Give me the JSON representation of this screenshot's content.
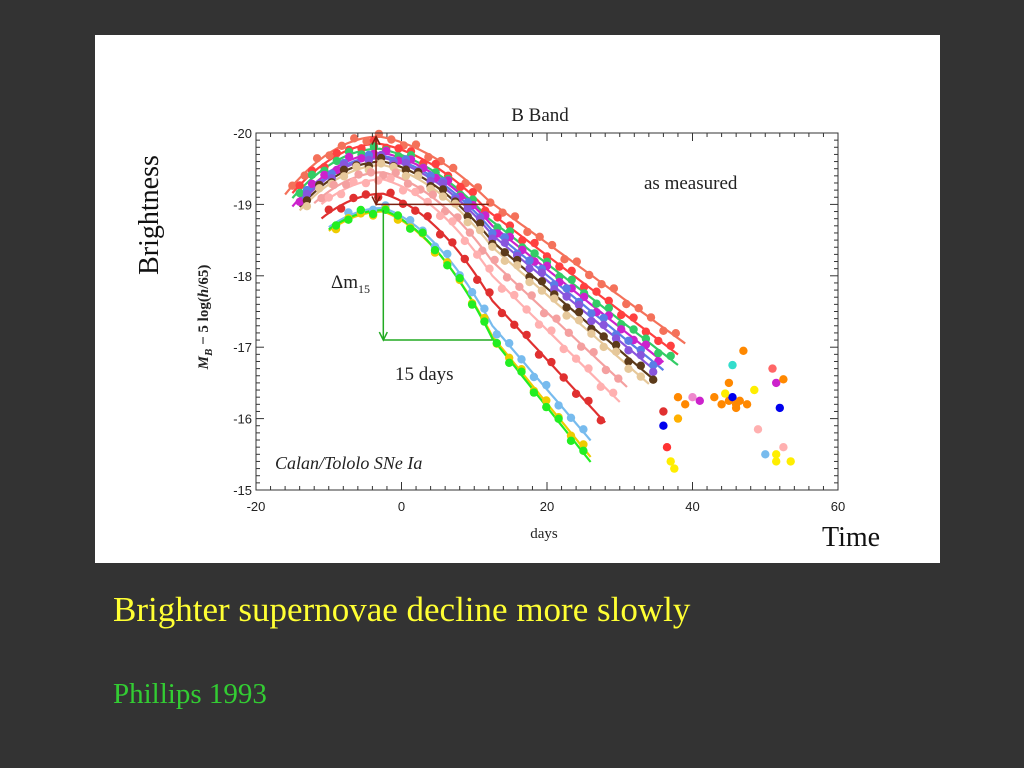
{
  "slide": {
    "y_side_label": "Brightness",
    "x_side_label": "Time",
    "caption": "Brighter supernovae decline more slowly",
    "citation": "Phillips 1993"
  },
  "chart_data": {
    "type": "scatter",
    "title": "B Band",
    "xlabel": "days",
    "ylabel": "M_B − 5 log(h/65)",
    "ylabel_parts": {
      "sym": "M",
      "sub": "B",
      "mid": " − 5 log(",
      "h": "h",
      "end": "/65)"
    },
    "xlim": [
      -20,
      60
    ],
    "ylim": [
      -15,
      -20
    ],
    "y_inverted": true,
    "x_ticks": [
      -20,
      0,
      20,
      40,
      60
    ],
    "x_tick_labels": [
      "-20",
      "0",
      "20",
      "40",
      "60"
    ],
    "y_ticks": [
      -20,
      -19,
      -18,
      -17,
      -16,
      -15
    ],
    "y_tick_labels": [
      "-20",
      "-19",
      "-18",
      "-17",
      "-16",
      "-15"
    ],
    "grid": false,
    "annotations": {
      "measured": "as measured",
      "survey": "Calan/Tololo SNe Ia",
      "dm15_prefix": "Δm",
      "dm15_sub": "15",
      "fifteen_days": "15 days"
    },
    "delta_m15_markers": {
      "bright_peak": {
        "x": -3.5,
        "y": -19.95
      },
      "bright_at_15": {
        "x": 12,
        "y": -19.0
      },
      "faint_peak": {
        "x": -2.5,
        "y": -18.92
      },
      "faint_at_15": {
        "x": 12.5,
        "y": -17.1
      }
    },
    "series": [
      {
        "color": "#f4715a",
        "peak": -19.95,
        "tpeak": -3,
        "decline": 0.9,
        "start": -16,
        "end": 39
      },
      {
        "color": "#ff4040",
        "peak": -19.85,
        "tpeak": -3,
        "decline": 0.95,
        "start": -15,
        "end": 38
      },
      {
        "color": "#33cc66",
        "peak": -19.78,
        "tpeak": -3,
        "decline": 0.98,
        "start": -15,
        "end": 38
      },
      {
        "color": "#cc22cc",
        "peak": -19.72,
        "tpeak": -2.5,
        "decline": 1.02,
        "start": -15,
        "end": 36
      },
      {
        "color": "#5a7de6",
        "peak": -19.68,
        "tpeak": -2.5,
        "decline": 1.05,
        "start": -14,
        "end": 36
      },
      {
        "color": "#8855dd",
        "peak": -19.65,
        "tpeak": -2.5,
        "decline": 1.08,
        "start": -14,
        "end": 35
      },
      {
        "color": "#5c3a1a",
        "peak": -19.6,
        "tpeak": -2.5,
        "decline": 1.12,
        "start": -14,
        "end": 35
      },
      {
        "color": "#e6c89a",
        "peak": -19.55,
        "tpeak": -2.5,
        "decline": 1.15,
        "start": -14,
        "end": 34
      },
      {
        "color": "#f4a0a0",
        "peak": -19.45,
        "tpeak": -2.5,
        "decline": 1.25,
        "start": -12,
        "end": 31
      },
      {
        "color": "#ffb0b0",
        "peak": -19.35,
        "tpeak": -2.5,
        "decline": 1.35,
        "start": -11,
        "end": 30
      },
      {
        "color": "#e03030",
        "peak": -19.15,
        "tpeak": -2.5,
        "decline": 1.5,
        "start": -11,
        "end": 28
      },
      {
        "color": "#77bbee",
        "peak": -18.95,
        "tpeak": -2.5,
        "decline": 1.65,
        "start": -10,
        "end": 26
      },
      {
        "color": "#eecc00",
        "peak": -18.9,
        "tpeak": -2.5,
        "decline": 1.75,
        "start": -10,
        "end": 26
      },
      {
        "color": "#22ee22",
        "peak": -18.92,
        "tpeak": -2.5,
        "decline": 1.8,
        "start": -10,
        "end": 26
      }
    ],
    "late_points": [
      {
        "x": 36,
        "y": -16.1,
        "color": "#e03030"
      },
      {
        "x": 36,
        "y": -15.9,
        "color": "#0000ee"
      },
      {
        "x": 36.5,
        "y": -15.6,
        "color": "#ff3333"
      },
      {
        "x": 37,
        "y": -15.4,
        "color": "#ffee00"
      },
      {
        "x": 37.5,
        "y": -15.3,
        "color": "#ffee00"
      },
      {
        "x": 38,
        "y": -16.3,
        "color": "#ff8800"
      },
      {
        "x": 38,
        "y": -16.0,
        "color": "#ffb000"
      },
      {
        "x": 39,
        "y": -16.2,
        "color": "#ff8800"
      },
      {
        "x": 40,
        "y": -16.3,
        "color": "#ee88cc"
      },
      {
        "x": 41,
        "y": -16.25,
        "color": "#cc22cc"
      },
      {
        "x": 43,
        "y": -16.3,
        "color": "#ff8800"
      },
      {
        "x": 44,
        "y": -16.2,
        "color": "#ff8800"
      },
      {
        "x": 44.5,
        "y": -16.35,
        "color": "#ffee00"
      },
      {
        "x": 45,
        "y": -16.5,
        "color": "#ff8800"
      },
      {
        "x": 45,
        "y": -16.25,
        "color": "#ff8800"
      },
      {
        "x": 45.5,
        "y": -16.75,
        "color": "#33ddcc"
      },
      {
        "x": 45.5,
        "y": -16.3,
        "color": "#0000ee"
      },
      {
        "x": 46,
        "y": -16.2,
        "color": "#ff8800"
      },
      {
        "x": 46,
        "y": -16.15,
        "color": "#ff8800"
      },
      {
        "x": 46.5,
        "y": -16.25,
        "color": "#ff8800"
      },
      {
        "x": 47,
        "y": -16.95,
        "color": "#ff8800"
      },
      {
        "x": 47.5,
        "y": -16.2,
        "color": "#ff8800"
      },
      {
        "x": 48.5,
        "y": -16.4,
        "color": "#ffee00"
      },
      {
        "x": 49,
        "y": -15.85,
        "color": "#ffb0b0"
      },
      {
        "x": 50,
        "y": -15.5,
        "color": "#77bbee"
      },
      {
        "x": 51,
        "y": -16.7,
        "color": "#ff6666"
      },
      {
        "x": 51.5,
        "y": -16.5,
        "color": "#cc22cc"
      },
      {
        "x": 51.5,
        "y": -15.5,
        "color": "#ffee00"
      },
      {
        "x": 51.5,
        "y": -15.4,
        "color": "#ffee00"
      },
      {
        "x": 52,
        "y": -16.15,
        "color": "#0000ee"
      },
      {
        "x": 52.5,
        "y": -16.55,
        "color": "#ff8800"
      },
      {
        "x": 52.5,
        "y": -15.6,
        "color": "#ffb0b0"
      },
      {
        "x": 53.5,
        "y": -15.4,
        "color": "#ffee00"
      }
    ]
  }
}
